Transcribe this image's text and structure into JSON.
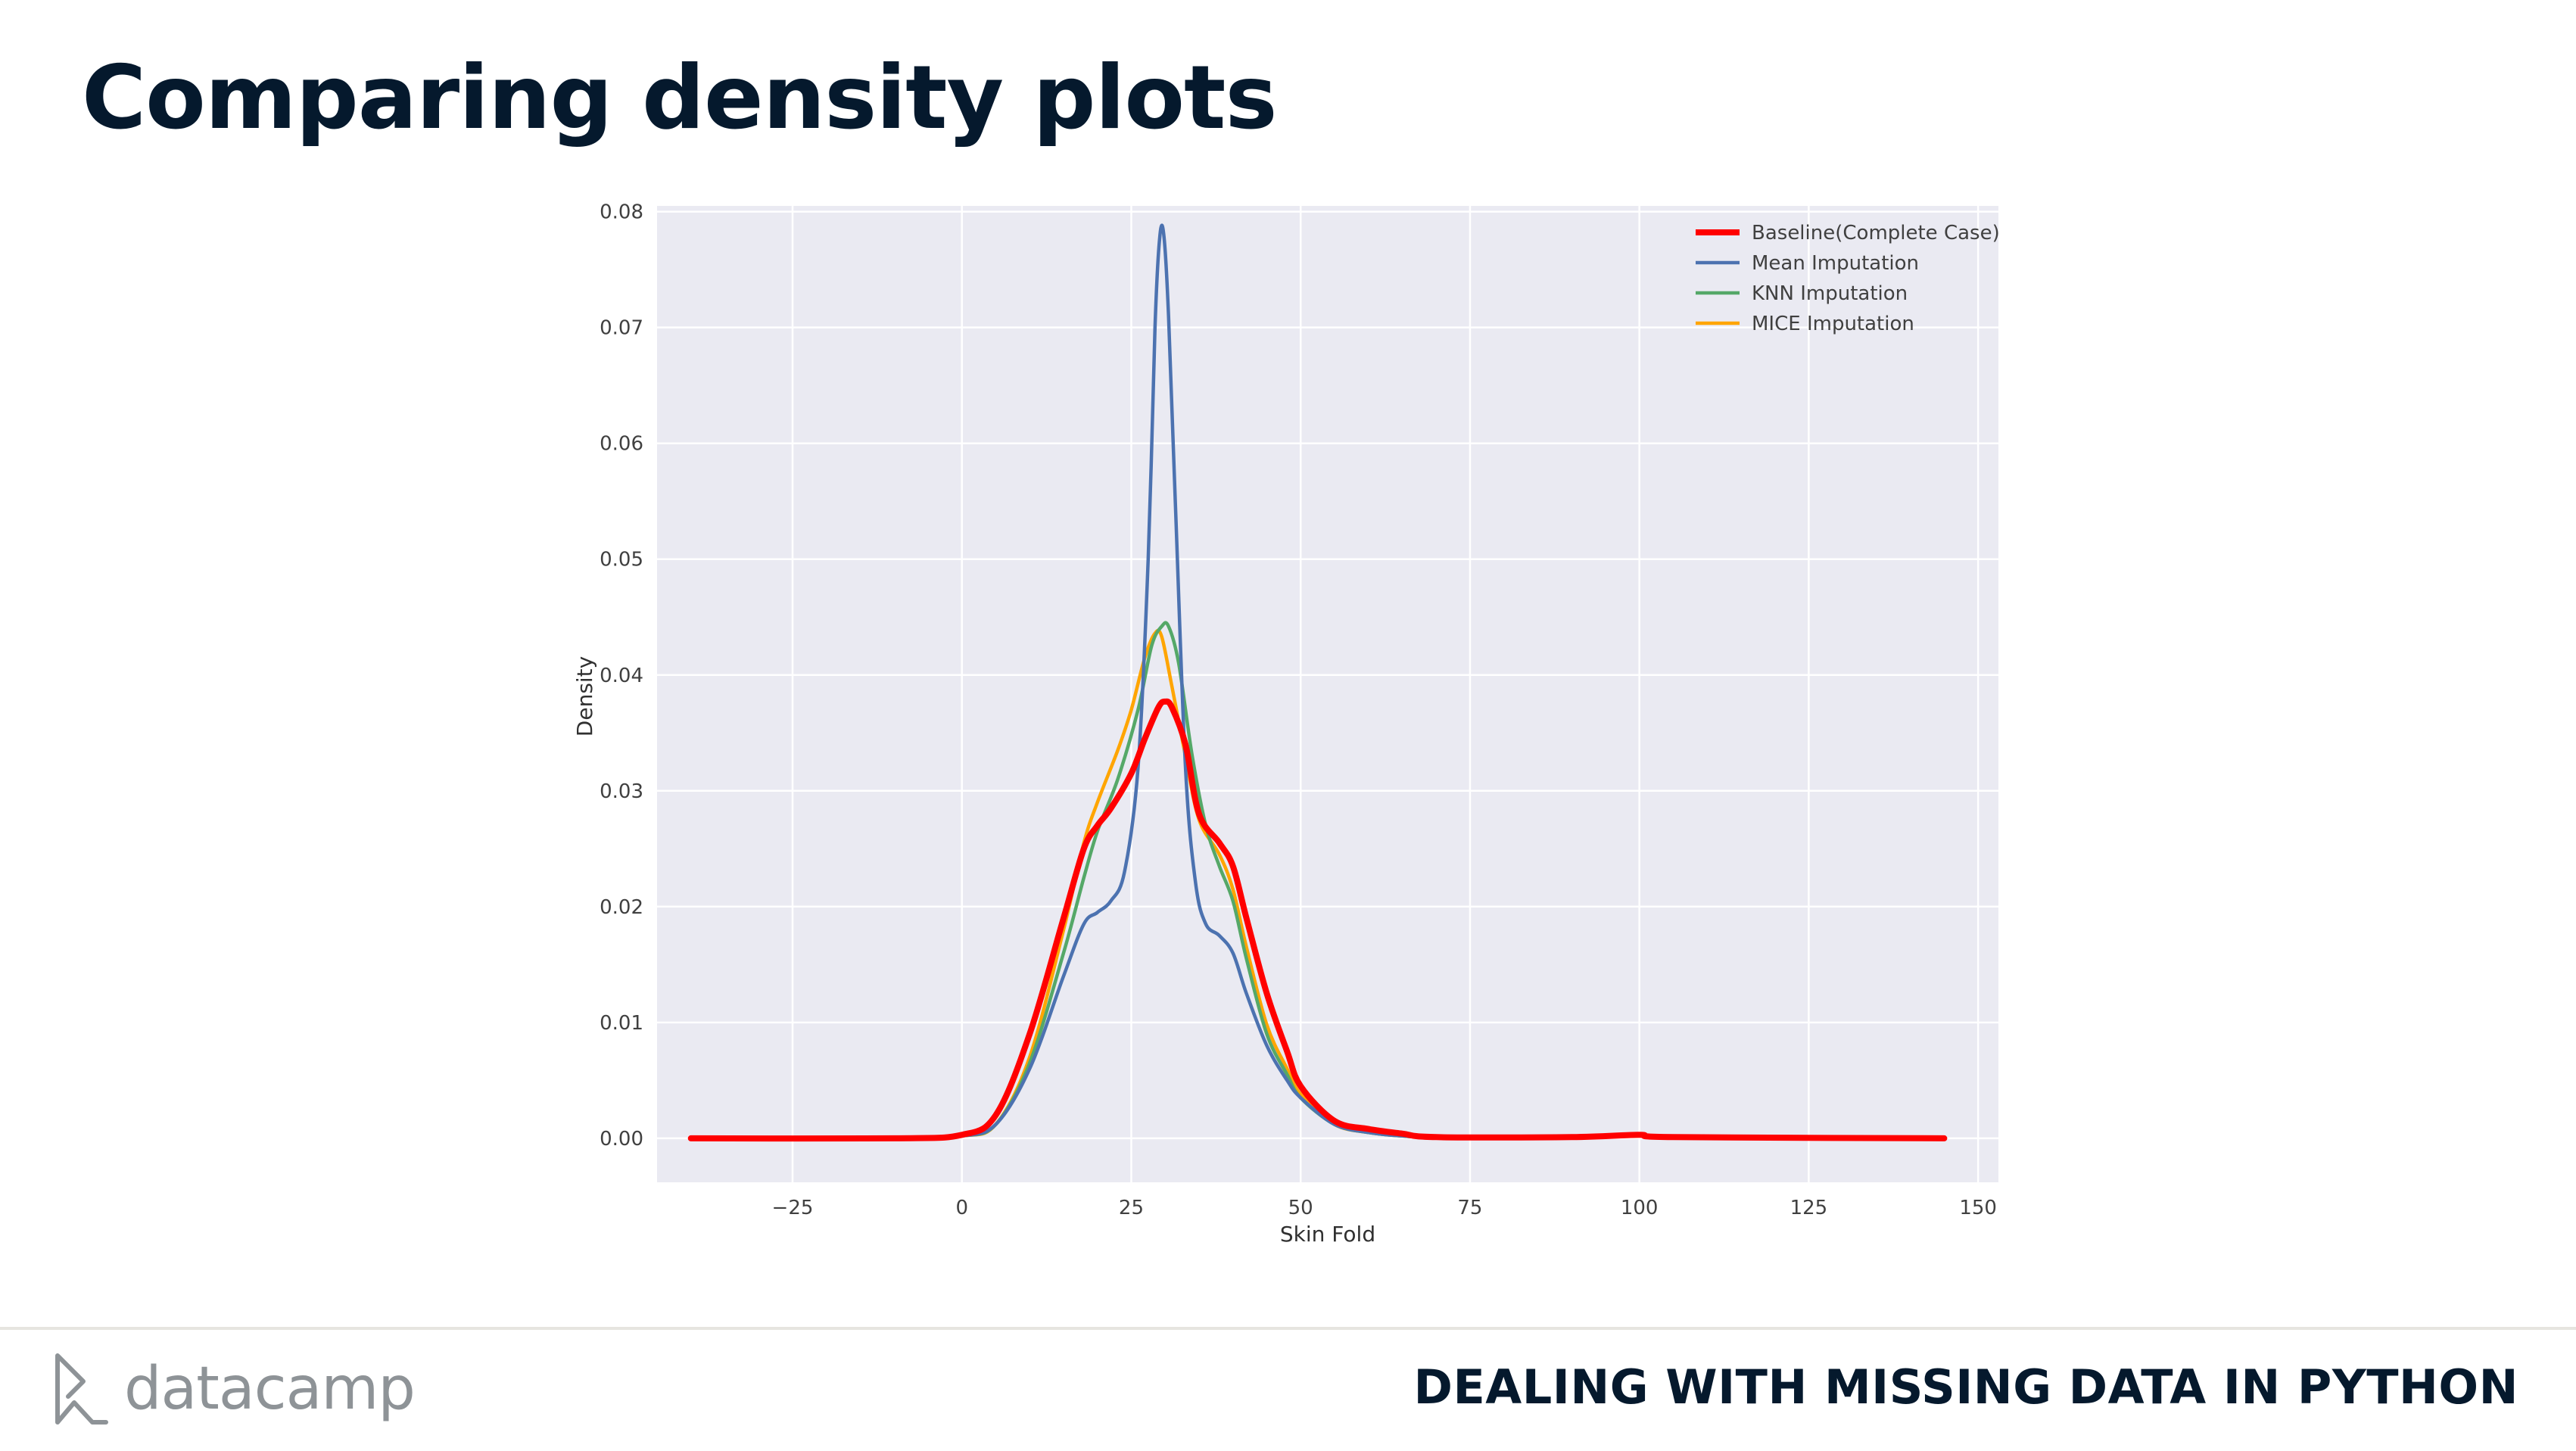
{
  "slide": {
    "title": "Comparing density plots",
    "footer_brand": "datacamp",
    "footer_course": "DEALING WITH MISSING DATA IN PYTHON",
    "logo_icon": "datacamp-logo-icon"
  },
  "chart_data": {
    "type": "line",
    "title": "",
    "xlabel": "Skin Fold",
    "ylabel": "Density",
    "xlim": [
      -45,
      153
    ],
    "ylim": [
      -0.0038,
      0.0805
    ],
    "x_ticks": [
      -25,
      0,
      25,
      50,
      75,
      100,
      125,
      150
    ],
    "x_tick_labels": [
      "−25",
      "0",
      "25",
      "50",
      "75",
      "100",
      "125",
      "150"
    ],
    "y_ticks": [
      0.0,
      0.01,
      0.02,
      0.03,
      0.04,
      0.05,
      0.06,
      0.07,
      0.08
    ],
    "y_tick_labels": [
      "0.00",
      "0.01",
      "0.02",
      "0.03",
      "0.04",
      "0.05",
      "0.06",
      "0.07",
      "0.08"
    ],
    "grid": true,
    "legend_position": "top-right",
    "background": "#eaeaf2",
    "series": [
      {
        "name": "Baseline(Complete Case)",
        "color": "#ff0000",
        "width": "thick",
        "points": [
          [
            -40,
            0
          ],
          [
            -10,
            0
          ],
          [
            0,
            0.0003
          ],
          [
            5,
            0.002
          ],
          [
            10,
            0.009
          ],
          [
            15,
            0.019
          ],
          [
            18,
            0.025
          ],
          [
            20,
            0.027
          ],
          [
            22,
            0.0285
          ],
          [
            25,
            0.0315
          ],
          [
            27,
            0.0345
          ],
          [
            29,
            0.0372
          ],
          [
            30,
            0.0377
          ],
          [
            31,
            0.0372
          ],
          [
            33,
            0.034
          ],
          [
            35,
            0.028
          ],
          [
            38,
            0.0255
          ],
          [
            40,
            0.0235
          ],
          [
            42,
            0.019
          ],
          [
            45,
            0.0125
          ],
          [
            48,
            0.0075
          ],
          [
            50,
            0.0045
          ],
          [
            55,
            0.0015
          ],
          [
            60,
            0.0008
          ],
          [
            65,
            0.0004
          ],
          [
            70,
            0.0001
          ],
          [
            90,
            0.0001
          ],
          [
            100,
            0.0003
          ],
          [
            105,
            0.0001
          ],
          [
            145,
            0
          ]
        ]
      },
      {
        "name": "Mean Imputation",
        "color": "#4c72b0",
        "width": "normal",
        "points": [
          [
            -40,
            0
          ],
          [
            -10,
            0
          ],
          [
            0,
            0.0002
          ],
          [
            5,
            0.0012
          ],
          [
            10,
            0.006
          ],
          [
            15,
            0.014
          ],
          [
            18,
            0.0185
          ],
          [
            20,
            0.0195
          ],
          [
            22,
            0.0205
          ],
          [
            24,
            0.023
          ],
          [
            26,
            0.032
          ],
          [
            27.5,
            0.05
          ],
          [
            28.5,
            0.07
          ],
          [
            29.2,
            0.0778
          ],
          [
            29.8,
            0.078
          ],
          [
            30.5,
            0.071
          ],
          [
            31.5,
            0.055
          ],
          [
            33,
            0.032
          ],
          [
            34.5,
            0.022
          ],
          [
            36,
            0.0185
          ],
          [
            38,
            0.0175
          ],
          [
            40,
            0.016
          ],
          [
            42,
            0.0125
          ],
          [
            45,
            0.008
          ],
          [
            48,
            0.005
          ],
          [
            50,
            0.0035
          ],
          [
            55,
            0.0012
          ],
          [
            60,
            0.0005
          ],
          [
            65,
            0.0002
          ],
          [
            70,
            0.0001
          ],
          [
            90,
            0.0001
          ],
          [
            100,
            0.0003
          ],
          [
            105,
            0.0001
          ],
          [
            145,
            0
          ]
        ]
      },
      {
        "name": "KNN Imputation",
        "color": "#55a868",
        "width": "normal",
        "points": [
          [
            -40,
            0
          ],
          [
            -10,
            0
          ],
          [
            0,
            0.0002
          ],
          [
            5,
            0.0012
          ],
          [
            10,
            0.0065
          ],
          [
            15,
            0.016
          ],
          [
            18,
            0.0225
          ],
          [
            20,
            0.0265
          ],
          [
            23,
            0.031
          ],
          [
            26,
            0.037
          ],
          [
            28,
            0.0425
          ],
          [
            29.5,
            0.0442
          ],
          [
            30.5,
            0.0442
          ],
          [
            32,
            0.041
          ],
          [
            34,
            0.033
          ],
          [
            36,
            0.027
          ],
          [
            38,
            0.0235
          ],
          [
            40,
            0.0205
          ],
          [
            42,
            0.0155
          ],
          [
            45,
            0.009
          ],
          [
            48,
            0.0055
          ],
          [
            50,
            0.0035
          ],
          [
            55,
            0.0012
          ],
          [
            60,
            0.0005
          ],
          [
            65,
            0.0002
          ],
          [
            70,
            0.0001
          ],
          [
            90,
            0.0001
          ],
          [
            100,
            0.0002
          ],
          [
            105,
            0.0001
          ],
          [
            145,
            0
          ]
        ]
      },
      {
        "name": "MICE Imputation",
        "color": "#ffa500",
        "width": "normal",
        "points": [
          [
            -40,
            0
          ],
          [
            -10,
            0
          ],
          [
            0,
            0.0002
          ],
          [
            5,
            0.0012
          ],
          [
            10,
            0.007
          ],
          [
            15,
            0.018
          ],
          [
            18,
            0.0255
          ],
          [
            20,
            0.029
          ],
          [
            23,
            0.0335
          ],
          [
            25,
            0.037
          ],
          [
            27,
            0.0415
          ],
          [
            28.5,
            0.0436
          ],
          [
            29.5,
            0.0433
          ],
          [
            31,
            0.039
          ],
          [
            33,
            0.033
          ],
          [
            35,
            0.0275
          ],
          [
            38,
            0.0245
          ],
          [
            40,
            0.0215
          ],
          [
            42,
            0.0165
          ],
          [
            45,
            0.0098
          ],
          [
            48,
            0.006
          ],
          [
            50,
            0.0038
          ],
          [
            55,
            0.0012
          ],
          [
            60,
            0.0005
          ],
          [
            65,
            0.0002
          ],
          [
            70,
            0.0001
          ],
          [
            90,
            0.0001
          ],
          [
            100,
            0.0002
          ],
          [
            105,
            0.0001
          ],
          [
            145,
            0
          ]
        ]
      }
    ]
  }
}
